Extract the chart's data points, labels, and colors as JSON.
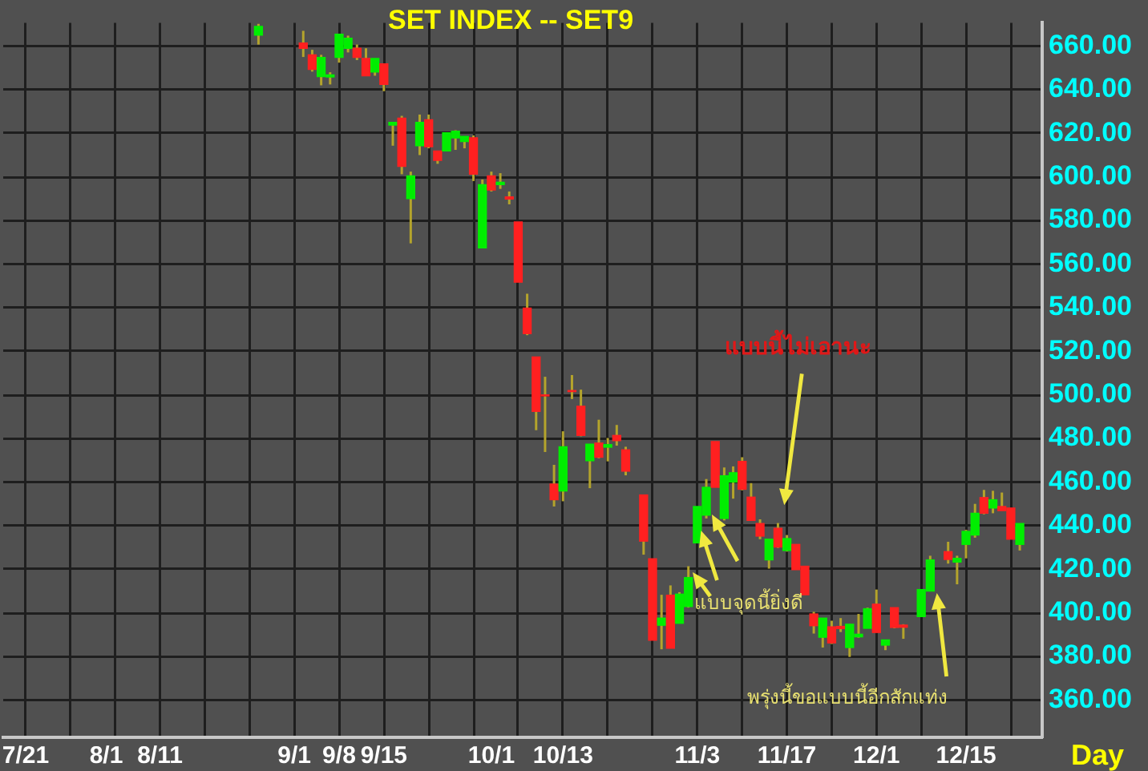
{
  "chart_data": {
    "type": "candlestick",
    "title": "SET  INDEX  --  SET9",
    "xlabel": "Day",
    "categories": [
      null,
      null,
      "7/21",
      null,
      null,
      null,
      null,
      null,
      null,
      null,
      null,
      "8/1",
      null,
      null,
      null,
      null,
      null,
      "8/11",
      null,
      null,
      null,
      null,
      null,
      null,
      null,
      null,
      null,
      null,
      null,
      null,
      null,
      null,
      "9/1",
      null,
      null,
      null,
      null,
      "9/8",
      null,
      null,
      null,
      null,
      "9/15",
      null,
      null,
      null,
      null,
      null,
      null,
      null,
      null,
      null,
      null,
      null,
      "10/1",
      null,
      null,
      null,
      null,
      null,
      null,
      null,
      "10/13",
      null,
      null,
      null,
      null,
      null,
      null,
      null,
      null,
      null,
      null,
      null,
      null,
      null,
      null,
      "11/3",
      null,
      null,
      null,
      null,
      null,
      null,
      null,
      null,
      null,
      "11/17",
      null,
      null,
      null,
      null,
      null,
      null,
      null,
      null,
      null,
      "12/1",
      null,
      null,
      null,
      null,
      null,
      null,
      null,
      null,
      null,
      "12/15",
      null,
      null,
      null,
      null,
      null,
      null,
      null,
      null
    ],
    "ohlc": [
      null,
      null,
      null,
      null,
      null,
      null,
      null,
      null,
      null,
      null,
      null,
      null,
      null,
      null,
      null,
      null,
      null,
      null,
      null,
      null,
      null,
      null,
      null,
      null,
      null,
      null,
      null,
      null,
      [
        665,
        670.2,
        660.7,
        669
      ],
      null,
      null,
      null,
      null,
      [
        661.4,
        667,
        655,
        659
      ],
      [
        656,
        658.3,
        648.3,
        649.3
      ],
      [
        646,
        656,
        642,
        654.8
      ],
      [
        645.8,
        648,
        642.4,
        646.8
      ],
      [
        654.8,
        665.5,
        652.4,
        665.5
      ],
      [
        659,
        664.8,
        657.1,
        663.6
      ],
      [
        659,
        660.7,
        653.6,
        654.8
      ],
      [
        654.3,
        659,
        646.4,
        646.4
      ],
      [
        648.1,
        654.3,
        646.4,
        654.3
      ],
      [
        651.9,
        651.9,
        639.3,
        642.4
      ],
      [
        623.8,
        625,
        614.3,
        625
      ],
      [
        626.9,
        628,
        601.2,
        604.8
      ],
      [
        590,
        602.4,
        569.5,
        600.5
      ],
      [
        614.3,
        628.6,
        610,
        625
      ],
      [
        626.2,
        628.6,
        613.1,
        613.8
      ],
      [
        611.9,
        611.9,
        606,
        607.6
      ],
      [
        611.9,
        620.2,
        611.9,
        620.2
      ],
      [
        617.9,
        621.4,
        612.4,
        621
      ],
      [
        616.2,
        618.6,
        613.1,
        618.6
      ],
      [
        617.9,
        619,
        598.1,
        601.2
      ],
      [
        567.4,
        598.8,
        567.4,
        596.4
      ],
      [
        600.5,
        602.4,
        593.3,
        594
      ],
      [
        596.5,
        601.7,
        594.5,
        597.5
      ],
      [
        590.8,
        593.3,
        587.4,
        589.8
      ],
      [
        579.3,
        579.3,
        551.7,
        551.7
      ],
      [
        539.8,
        546.4,
        527.4,
        528.1
      ],
      [
        517.4,
        517.4,
        483.8,
        492.4
      ],
      [
        500,
        508.3,
        473.8,
        499.5
      ],
      [
        459.1,
        467.9,
        448.8,
        451.9
      ],
      [
        455.9,
        483.3,
        451.2,
        476.2
      ],
      [
        502,
        509.1,
        498.1,
        501.5
      ],
      [
        494.8,
        502.4,
        481,
        481.4
      ],
      [
        469.8,
        477.4,
        457.2,
        477.4
      ],
      [
        477.9,
        488.6,
        470.9,
        471.4
      ],
      [
        476,
        480.2,
        469.5,
        477.2
      ],
      [
        481.4,
        486.2,
        476.7,
        479
      ],
      [
        474.8,
        476.2,
        463.1,
        465
      ],
      null,
      [
        454.1,
        454.1,
        426.7,
        432.9
      ],
      [
        424.8,
        424.8,
        387.4,
        387.4
      ],
      [
        394.3,
        408.3,
        383.3,
        397.6
      ],
      [
        408.1,
        412.6,
        383.8,
        383.8
      ],
      [
        395.2,
        409.5,
        395.2,
        408.6
      ],
      [
        402.9,
        421.4,
        402.4,
        416.2
      ],
      [
        432.1,
        448.8,
        432.1,
        448.8
      ],
      [
        444.8,
        461.4,
        443.3,
        457.6
      ],
      [
        478.6,
        478.6,
        457.6,
        457.6
      ],
      [
        443.3,
        466.7,
        442.4,
        462.9
      ],
      [
        460,
        467.2,
        452.4,
        464.3
      ],
      [
        469.5,
        471.4,
        456.2,
        456.7
      ],
      [
        453.1,
        459.5,
        442.4,
        442.4
      ],
      [
        441,
        442.9,
        433.8,
        435.2
      ],
      [
        424.3,
        433.8,
        420.3,
        433.8
      ],
      [
        438.8,
        441.2,
        429.8,
        430.2
      ],
      [
        428.6,
        435.7,
        428.1,
        434.1
      ],
      [
        431.4,
        431.4,
        419.8,
        419.8
      ],
      [
        421.4,
        421.4,
        408.3,
        408.3
      ],
      [
        399.5,
        400.5,
        390.5,
        394.1
      ],
      [
        388.8,
        397.6,
        384.1,
        397.6
      ],
      [
        393.6,
        396.4,
        385.7,
        386.2
      ],
      [
        393.8,
        397.6,
        391.2,
        392.8
      ],
      [
        384.1,
        394.8,
        379.8,
        394.8
      ],
      [
        389,
        399.5,
        388.6,
        390.2
      ],
      [
        392.9,
        402.4,
        392.9,
        401.9
      ],
      [
        404,
        410.7,
        391,
        391
      ],
      [
        385.2,
        387.6,
        382.9,
        387.6
      ],
      [
        402.4,
        402.4,
        392.9,
        393.3
      ],
      [
        394.4,
        394.8,
        388.1,
        393.4
      ],
      null,
      [
        398.3,
        410.7,
        398.3,
        410.7
      ],
      [
        410,
        426.2,
        410,
        424.3
      ],
      null,
      [
        428.1,
        432.6,
        422.6,
        424.5
      ],
      [
        423.3,
        426.2,
        413.1,
        425
      ],
      [
        431.4,
        438.1,
        425,
        437.4
      ],
      [
        435.7,
        450,
        434.5,
        445.7
      ],
      [
        452.9,
        456.4,
        445.2,
        445.7
      ],
      [
        448.1,
        456,
        445.7,
        451.9
      ],
      [
        448.8,
        455.2,
        446.9,
        446.9
      ],
      [
        448.1,
        448.1,
        433.8,
        433.8
      ],
      [
        431.4,
        441,
        428.6,
        441
      ],
      null,
      null
    ],
    "colors": [
      null,
      null,
      null,
      null,
      null,
      null,
      null,
      null,
      null,
      null,
      null,
      null,
      null,
      null,
      null,
      null,
      null,
      null,
      null,
      null,
      null,
      null,
      null,
      null,
      null,
      null,
      null,
      null,
      "#00ee00",
      null,
      null,
      null,
      null,
      "#ff2020",
      "#ff2020",
      "#00ee00",
      "#00ee00",
      "#00ee00",
      "#00ee00",
      "#ff2020",
      "#ff2020",
      "#00ee00",
      "#ff2020",
      "#00ee00",
      "#ff2020",
      "#00ee00",
      "#00ee00",
      "#ff2020",
      "#ff2020",
      "#00ee00",
      "#00ee00",
      "#00ee00",
      "#ff2020",
      "#00ee00",
      "#ff2020",
      "#00ee00",
      "#ff2020",
      "#ff2020",
      "#ff2020",
      "#ff2020",
      "#ff2020",
      "#ff2020",
      "#00ee00",
      "#ff2020",
      "#ff2020",
      "#00ee00",
      "#ff2020",
      "#00ee00",
      "#ff2020",
      "#ff2020",
      null,
      "#ff2020",
      "#ff2020",
      "#00ee00",
      "#ff2020",
      "#00ee00",
      "#00ee00",
      "#00ee00",
      "#00ee00",
      "#ff2020",
      "#00ee00",
      "#00ee00",
      "#ff2020",
      "#ff2020",
      "#ff2020",
      "#00ee00",
      "#ff2020",
      "#00ee00",
      "#ff2020",
      "#ff2020",
      "#ff2020",
      "#00ee00",
      "#ff2020",
      "#ff2020",
      "#00ee00",
      "#00ee00",
      "#00ee00",
      "#ff2020",
      "#00ee00",
      "#ff2020",
      "#ff2020",
      null,
      "#00ee00",
      "#00ee00",
      null,
      "#ff2020",
      "#00ee00",
      "#00ee00",
      "#00ee00",
      "#ff2020",
      "#00ee00",
      "#ff2020",
      "#ff2020",
      "#00ee00",
      null,
      null
    ],
    "ylim": [
      342.9,
      670.7
    ],
    "yticks": [
      {
        "value": 360,
        "label": "360.00"
      },
      {
        "value": 380,
        "label": "380.00"
      },
      {
        "value": 400,
        "label": "400.00"
      },
      {
        "value": 420,
        "label": "420.00"
      },
      {
        "value": 440,
        "label": "440.00"
      },
      {
        "value": 460,
        "label": "460.00"
      },
      {
        "value": 480,
        "label": "480.00"
      },
      {
        "value": 500,
        "label": "500.00"
      },
      {
        "value": 520,
        "label": "520.00"
      },
      {
        "value": 540,
        "label": "540.00"
      },
      {
        "value": 560,
        "label": "560.00"
      },
      {
        "value": 580,
        "label": "580.00"
      },
      {
        "value": 600,
        "label": "600.00"
      },
      {
        "value": 620,
        "label": "620.00"
      },
      {
        "value": 640,
        "label": "640.00"
      },
      {
        "value": 660,
        "label": "660.00"
      }
    ],
    "grid": true,
    "legend": false,
    "annotations": [
      "แบบนี้ไม่เอานะ",
      "แบบจุดนี้ยิ่งดี",
      "พรุ่งนี้ขอแบบนี้อีกสักแท่ง"
    ]
  }
}
